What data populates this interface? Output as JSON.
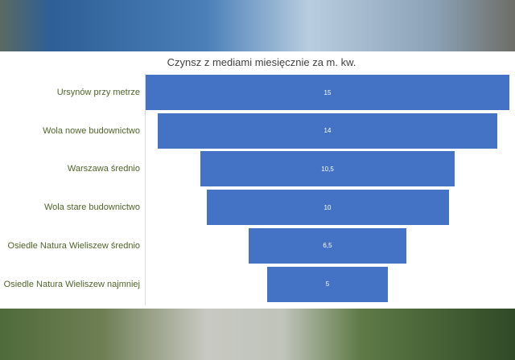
{
  "chart_data": {
    "type": "funnel",
    "title": "Czynsz z mediami miesięcznie za m. kw.",
    "categories": [
      "Ursynów przy metrze",
      "Wola nowe budownictwo",
      "Warszawa średnio",
      "Wola stare budownictwo",
      "Osiedle Natura Wieliszew średnio",
      "Osiedle Natura Wieliszew najmniej"
    ],
    "values": [
      15,
      14,
      10.5,
      10,
      6.5,
      5
    ],
    "data_labels": [
      "15",
      "14",
      "10,5",
      "10",
      "6,5",
      "5"
    ],
    "bar_color": "#4472c4",
    "label_color": "#4f6228"
  }
}
